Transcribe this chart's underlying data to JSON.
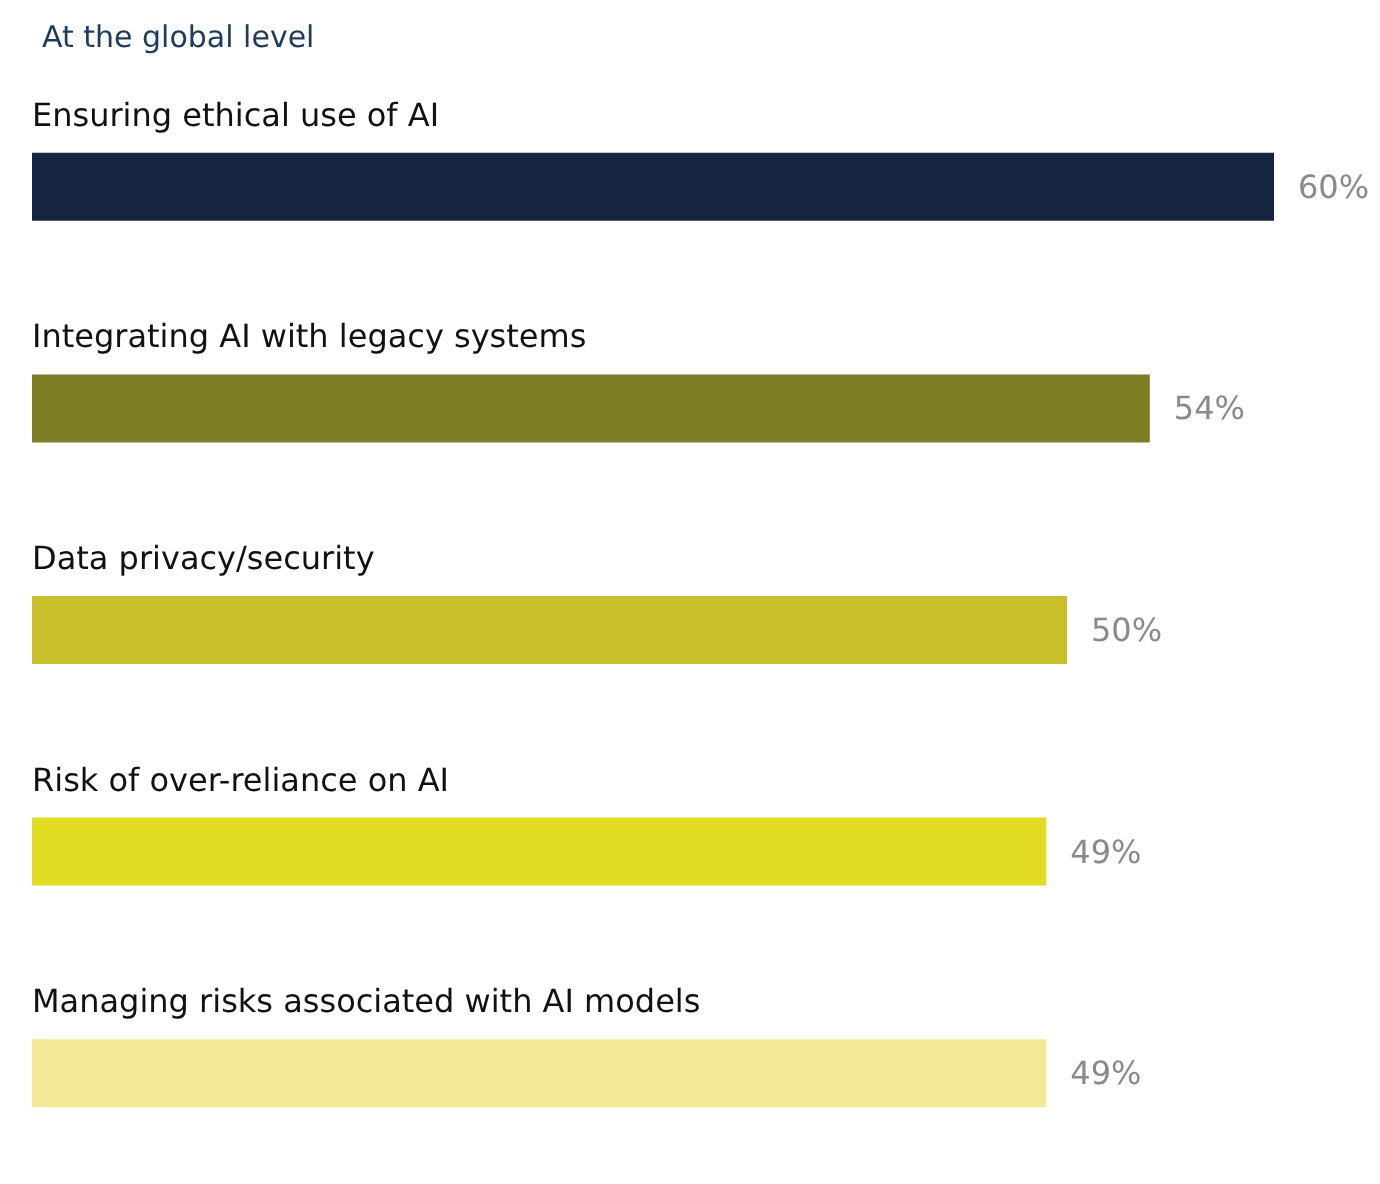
{
  "chart_data": {
    "type": "bar",
    "orientation": "horizontal",
    "title": "At the global level",
    "categories": [
      "Ensuring ethical use of AI",
      "Integrating AI with legacy systems",
      "Data privacy/security",
      "Risk of over-reliance on AI",
      "Managing risks associated with AI models"
    ],
    "values": [
      60,
      54,
      50,
      49,
      49
    ],
    "colors": [
      "#16243f",
      "#7d7d26",
      "#c8c02b",
      "#e0dc24",
      "#f2ea96"
    ],
    "value_labels": [
      "60%",
      "54%",
      "50%",
      "49%",
      "49%"
    ]
  }
}
